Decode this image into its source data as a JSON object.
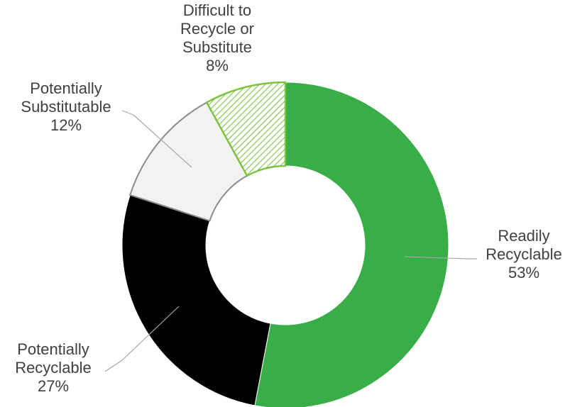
{
  "chart_data": {
    "type": "pie",
    "style": "donut",
    "slices": [
      {
        "label_lines": [
          "Readily",
          "Recyclable"
        ],
        "value": 53,
        "display": "53%",
        "color": "#39ad48",
        "pattern": "solid"
      },
      {
        "label_lines": [
          "Potentially",
          "Recyclable"
        ],
        "value": 27,
        "display": "27%",
        "color": "#000000",
        "pattern": "solid"
      },
      {
        "label_lines": [
          "Potentially",
          "Substitutable"
        ],
        "value": 12,
        "display": "12%",
        "color": "#f2f2f2",
        "pattern": "solid"
      },
      {
        "label_lines": [
          "Difficult to",
          "Recycle or",
          "Substitute"
        ],
        "value": 8,
        "display": "8%",
        "color": "#7dc242",
        "pattern": "diagonal-hatch"
      }
    ],
    "start_angle": "12 o'clock",
    "direction": "clockwise",
    "legend": "none",
    "label_style": "leader-lines"
  }
}
